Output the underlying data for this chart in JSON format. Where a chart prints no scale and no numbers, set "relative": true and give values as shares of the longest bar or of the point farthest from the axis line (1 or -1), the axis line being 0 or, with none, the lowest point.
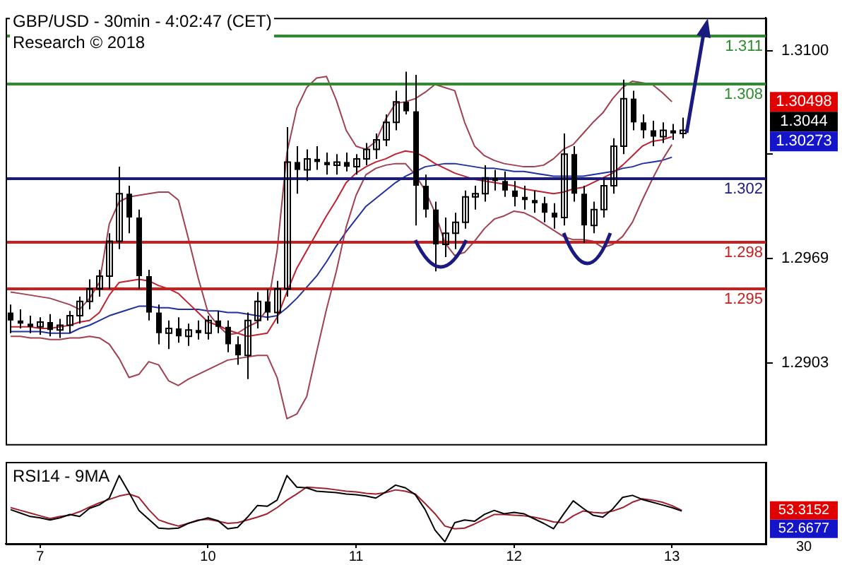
{
  "chart_data": [
    {
      "type": "candlestick",
      "title": "GBP/USD - 30min - 4:02:47 (CET)",
      "subtitle": "Research © 2018",
      "color": "#000000",
      "categories": [
        null,
        null,
        null,
        "7",
        null,
        null,
        null,
        null,
        null,
        null,
        null,
        null,
        null,
        null,
        null,
        null,
        null,
        null,
        null,
        null,
        "10",
        null,
        null,
        null,
        null,
        null,
        null,
        null,
        null,
        null,
        null,
        null,
        null,
        null,
        null,
        "11",
        null,
        null,
        null,
        null,
        null,
        null,
        null,
        null,
        null,
        null,
        null,
        null,
        null,
        null,
        null,
        "12",
        null,
        null,
        null,
        null,
        null,
        null,
        null,
        null,
        null,
        null,
        null,
        null,
        null,
        null,
        null,
        "13",
        null,
        null,
        null,
        null,
        null,
        null,
        null,
        null,
        null
      ],
      "ohlc": [
        [
          1.2935,
          1.294,
          1.2922,
          1.293
        ],
        [
          1.293,
          1.2937,
          1.2925,
          1.2928
        ],
        [
          1.2928,
          1.2933,
          1.2922,
          1.2926
        ],
        [
          1.2926,
          1.2932,
          1.2921,
          1.2929
        ],
        [
          1.2929,
          1.2934,
          1.292,
          1.2924
        ],
        [
          1.2924,
          1.2931,
          1.2919,
          1.2927
        ],
        [
          1.2927,
          1.2936,
          1.2922,
          1.2933
        ],
        [
          1.2933,
          1.2945,
          1.2928,
          1.2942
        ],
        [
          1.2942,
          1.2956,
          1.2937,
          1.295
        ],
        [
          1.295,
          1.2962,
          1.2945,
          1.2958
        ],
        [
          1.2958,
          1.2985,
          1.295,
          1.298
        ],
        [
          1.298,
          1.3027,
          1.2975,
          1.301
        ],
        [
          1.301,
          1.3015,
          1.2985,
          1.2995
        ],
        [
          1.2995,
          1.3,
          1.295,
          1.2958
        ],
        [
          1.2958,
          1.2962,
          1.293,
          1.2935
        ],
        [
          1.2935,
          1.294,
          1.2915,
          1.2922
        ],
        [
          1.2922,
          1.293,
          1.2912,
          1.2925
        ],
        [
          1.2925,
          1.2932,
          1.2916,
          1.292
        ],
        [
          1.292,
          1.2928,
          1.2914,
          1.2924
        ],
        [
          1.2924,
          1.293,
          1.2918,
          1.2922
        ],
        [
          1.2922,
          1.2933,
          1.2918,
          1.293
        ],
        [
          1.293,
          1.2936,
          1.2922,
          1.2926
        ],
        [
          1.2926,
          1.293,
          1.291,
          1.2915
        ],
        [
          1.2915,
          1.292,
          1.2902,
          1.2908
        ],
        [
          1.2908,
          1.2935,
          1.2893,
          1.293
        ],
        [
          1.293,
          1.2948,
          1.2925,
          1.2942
        ],
        [
          1.2942,
          1.295,
          1.293,
          1.2935
        ],
        [
          1.2935,
          1.2955,
          1.2928,
          1.295
        ],
        [
          1.295,
          1.3052,
          1.2945,
          1.303
        ],
        [
          1.303,
          1.304,
          1.301,
          1.3025
        ],
        [
          1.3025,
          1.3038,
          1.3018,
          1.3032
        ],
        [
          1.3032,
          1.304,
          1.3025,
          1.303
        ],
        [
          1.303,
          1.3036,
          1.3022,
          1.3028
        ],
        [
          1.3028,
          1.3035,
          1.3022,
          1.303
        ],
        [
          1.303,
          1.3036,
          1.3024,
          1.3027
        ],
        [
          1.3027,
          1.3035,
          1.3022,
          1.3032
        ],
        [
          1.3032,
          1.3042,
          1.3028,
          1.3038
        ],
        [
          1.3038,
          1.3048,
          1.3032,
          1.3044
        ],
        [
          1.3044,
          1.306,
          1.304,
          1.3055
        ],
        [
          1.3055,
          1.3075,
          1.305,
          1.3068
        ],
        [
          1.3068,
          1.3087,
          1.306,
          1.3062
        ],
        [
          1.3062,
          1.3085,
          1.299,
          1.3015
        ],
        [
          1.3015,
          1.3022,
          1.2995,
          1.3
        ],
        [
          1.3,
          1.3005,
          1.2961,
          1.2978
        ],
        [
          1.2978,
          1.2995,
          1.297,
          1.2985
        ],
        [
          1.2985,
          1.2998,
          1.2975,
          1.2992
        ],
        [
          1.2992,
          1.3012,
          1.2988,
          1.3008
        ],
        [
          1.3008,
          1.3015,
          1.3,
          1.301
        ],
        [
          1.301,
          1.3028,
          1.3005,
          1.302
        ],
        [
          1.302,
          1.3025,
          1.3012,
          1.3018
        ],
        [
          1.3018,
          1.3024,
          1.3008,
          1.3012
        ],
        [
          1.3012,
          1.3018,
          1.3002,
          1.3008
        ],
        [
          1.3008,
          1.3015,
          1.3,
          1.3006
        ],
        [
          1.3006,
          1.3012,
          1.2998,
          1.3004
        ],
        [
          1.3004,
          1.3008,
          1.2992,
          1.2998
        ],
        [
          1.2998,
          1.3004,
          1.2988,
          1.2995
        ],
        [
          1.2995,
          1.3048,
          1.299,
          1.3035
        ],
        [
          1.3035,
          1.304,
          1.3005,
          1.301
        ],
        [
          1.301,
          1.3015,
          1.2979,
          1.299
        ],
        [
          1.299,
          1.3005,
          1.2985,
          1.3
        ],
        [
          1.3,
          1.302,
          1.2995,
          1.3015
        ],
        [
          1.3015,
          1.3045,
          1.301,
          1.304
        ],
        [
          1.304,
          1.3082,
          1.3035,
          1.307
        ],
        [
          1.307,
          1.3075,
          1.305,
          1.3055
        ],
        [
          1.3055,
          1.306,
          1.3045,
          1.305
        ],
        [
          1.305,
          1.3056,
          1.304,
          1.3046
        ],
        [
          1.3046,
          1.3055,
          1.3042,
          1.305
        ],
        [
          1.305,
          1.3054,
          1.3044,
          1.3048
        ],
        [
          1.3048,
          1.3058,
          1.3045,
          1.305
        ],
        null,
        null,
        null,
        null,
        null,
        null,
        null,
        null
      ],
      "series": [
        {
          "type": "line",
          "color": "#a04050",
          "values": [
            1.2948,
            1.2947,
            1.2946,
            1.2945,
            1.2944,
            1.2942,
            1.294,
            1.2937,
            1.2944,
            1.2954,
            1.2991,
            1.3005,
            1.3008,
            1.3009,
            1.301,
            1.3011,
            1.3011,
            1.3006,
            1.2982,
            1.2957,
            1.2935,
            1.2927,
            1.2921,
            1.2922,
            1.2926,
            1.2929,
            1.2937,
            1.2974,
            1.3036,
            1.3064,
            1.3077,
            1.3083,
            1.3084,
            1.3069,
            1.305,
            1.304,
            1.3038,
            1.3043,
            1.3057,
            1.3067,
            1.3068,
            1.307,
            1.3074,
            1.3079,
            1.3077,
            1.3075,
            1.3055,
            1.304,
            1.3034,
            1.3031,
            1.3029,
            1.3028,
            1.3027,
            1.3027,
            1.3028,
            1.3032,
            1.3038,
            1.3041,
            1.3048,
            1.3055,
            1.3061,
            1.307,
            1.3077,
            1.3081,
            1.308,
            1.3079,
            1.3074,
            1.3068,
            null,
            null,
            null,
            null,
            null,
            null,
            null,
            null,
            null
          ]
        },
        {
          "type": "line",
          "color": "#c02030",
          "values": [
            1.2926,
            1.2926,
            1.2926,
            1.2925,
            1.2925,
            1.2926,
            1.2927,
            1.2929,
            1.293,
            1.2935,
            1.2946,
            1.2954,
            1.2955,
            1.2956,
            1.2955,
            1.2952,
            1.295,
            1.2947,
            1.2941,
            1.2935,
            1.2929,
            1.2927,
            1.2924,
            1.2922,
            1.292,
            1.2921,
            1.2922,
            1.2932,
            1.2948,
            1.2963,
            1.2974,
            1.2985,
            1.2996,
            1.3006,
            1.3017,
            1.3023,
            1.3027,
            1.303,
            1.3032,
            1.3035,
            1.3037,
            1.3036,
            1.3033,
            1.3029,
            1.3026,
            1.3023,
            1.3021,
            1.3019,
            1.3018,
            1.3017,
            1.3016,
            1.3015,
            1.3013,
            1.3012,
            1.3011,
            1.301,
            1.3011,
            1.3013,
            1.3014,
            1.3017,
            1.302,
            1.3023,
            1.3028,
            1.3034,
            1.304,
            1.3043,
            1.3044,
            1.3046,
            null,
            null,
            null,
            null,
            null,
            null,
            null,
            null,
            null
          ]
        },
        {
          "type": "line",
          "color": "#a04050",
          "values": [
            1.292,
            1.292,
            1.2919,
            1.2919,
            1.2918,
            1.2918,
            1.2919,
            1.2919,
            1.292,
            1.2919,
            1.2915,
            1.2906,
            1.2894,
            1.2896,
            1.2904,
            1.2902,
            1.2892,
            1.2889,
            1.2893,
            1.2896,
            1.2899,
            1.2902,
            1.2905,
            1.2906,
            1.2907,
            1.2908,
            1.2908,
            1.2894,
            1.2868,
            1.2871,
            1.2882,
            1.291,
            1.2937,
            1.2961,
            1.2989,
            1.3009,
            1.3022,
            1.3026,
            1.3028,
            1.3029,
            1.3029,
            1.3022,
            1.3012,
            1.2998,
            1.2979,
            1.2971,
            1.2973,
            1.298,
            1.2988,
            1.2994,
            1.2996,
            1.2999,
            1.2998,
            1.2995,
            1.2991,
            1.2987,
            1.2983,
            1.2981,
            1.2981,
            1.298,
            1.2976,
            1.2978,
            1.2983,
            1.2992,
            1.3006,
            1.3019,
            1.3031,
            1.3041,
            null,
            null,
            null,
            null,
            null,
            null,
            null,
            null,
            null
          ]
        },
        {
          "type": "line",
          "color": "#2030a0",
          "values": [
            1.2923,
            1.2923,
            1.2923,
            1.2923,
            1.2922,
            1.2922,
            1.2922,
            1.2925,
            1.2927,
            1.293,
            1.2933,
            1.2935,
            1.2937,
            1.2939,
            1.2939,
            1.2938,
            1.2938,
            1.2937,
            1.2937,
            1.2937,
            1.2936,
            1.2936,
            1.2935,
            1.2935,
            1.2934,
            1.2933,
            1.2932,
            1.2933,
            1.2938,
            1.2944,
            1.2951,
            1.2958,
            1.2967,
            1.2977,
            1.2986,
            1.2994,
            1.3002,
            1.3007,
            1.3012,
            1.3017,
            1.3021,
            1.3024,
            1.3027,
            1.3028,
            1.3029,
            1.3029,
            1.3028,
            1.3027,
            1.3026,
            1.3026,
            1.3025,
            1.3024,
            1.3024,
            1.3023,
            1.3022,
            1.3021,
            1.3021,
            1.3021,
            1.3021,
            1.3022,
            1.3023,
            1.3024,
            1.3026,
            1.3027,
            1.3029,
            1.303,
            1.3031,
            1.3033,
            null,
            null,
            null,
            null,
            null,
            null,
            null,
            null,
            null
          ]
        }
      ],
      "ylim": [
        1.2852,
        1.3121
      ],
      "yticks": [
        {
          "value": 1.31,
          "label": "1.3100"
        },
        {
          "value": 1.3035,
          "label": null
        },
        1.2969,
        1.2903
      ],
      "tick_labels": "y",
      "ref_lines": [
        {
          "axis": "y",
          "value": 1.311,
          "label": "1.311",
          "color": "#2e8b2e"
        },
        {
          "axis": "y",
          "value": 1.308,
          "label": "1.308",
          "color": "#2e8b2e"
        },
        {
          "axis": "y",
          "value": 1.302,
          "label": "1.302",
          "color": "#1a1a80"
        },
        {
          "axis": "y",
          "value": 1.298,
          "label": "1.298",
          "color": "#c81e1e"
        },
        {
          "axis": "y",
          "value": 1.295,
          "label": "1.295",
          "color": "#c81e1e"
        }
      ],
      "annotations": [
        "1.30498",
        "1.3044",
        "1.30273"
      ]
    },
    {
      "type": "line",
      "title": "RSI14 - 9MA",
      "relative": true,
      "categories": [
        null,
        null,
        null,
        "7",
        null,
        null,
        null,
        null,
        null,
        null,
        null,
        null,
        null,
        null,
        null,
        null,
        null,
        null,
        null,
        null,
        "10",
        null,
        null,
        null,
        null,
        null,
        null,
        null,
        null,
        null,
        null,
        null,
        null,
        null,
        null,
        "11",
        null,
        null,
        null,
        null,
        null,
        null,
        null,
        null,
        null,
        null,
        null,
        null,
        null,
        null,
        null,
        "12",
        null,
        null,
        null,
        null,
        null,
        null,
        null,
        null,
        null,
        null,
        null,
        null,
        null,
        null,
        null,
        "13",
        null,
        null,
        null,
        null,
        null,
        null,
        null,
        null,
        null
      ],
      "series": [
        {
          "color": "#000000",
          "values": [
            0.5,
            0.45,
            0.4,
            0.38,
            0.35,
            0.38,
            0.43,
            0.4,
            0.52,
            0.57,
            0.67,
            1.0,
            0.75,
            0.49,
            0.36,
            0.23,
            0.22,
            0.23,
            0.3,
            0.34,
            0.38,
            0.34,
            0.22,
            0.24,
            0.39,
            0.56,
            0.55,
            0.64,
            1.0,
            0.83,
            0.82,
            0.77,
            0.76,
            0.75,
            0.73,
            0.72,
            0.7,
            0.67,
            0.76,
            0.86,
            0.82,
            0.72,
            0.5,
            0.2,
            0.03,
            0.31,
            0.35,
            0.33,
            0.43,
            0.49,
            0.44,
            0.46,
            0.44,
            0.37,
            0.3,
            0.22,
            0.43,
            0.63,
            0.52,
            0.42,
            0.39,
            0.51,
            0.68,
            0.71,
            0.65,
            0.61,
            0.57,
            0.53,
            0.48,
            null,
            null,
            null,
            null,
            null,
            null,
            null,
            null
          ]
        },
        {
          "color": "#a02030",
          "values": [
            0.53,
            0.49,
            0.45,
            0.41,
            0.37,
            0.4,
            0.42,
            0.47,
            0.54,
            0.6,
            0.65,
            0.7,
            0.73,
            0.68,
            0.5,
            0.35,
            0.3,
            0.26,
            0.3,
            0.35,
            0.36,
            0.33,
            0.3,
            0.31,
            0.35,
            0.39,
            0.44,
            0.53,
            0.64,
            0.73,
            0.83,
            0.82,
            0.81,
            0.79,
            0.77,
            0.76,
            0.74,
            0.73,
            0.75,
            0.79,
            0.77,
            0.73,
            0.59,
            0.44,
            0.26,
            0.22,
            0.23,
            0.29,
            0.36,
            0.43,
            0.43,
            0.42,
            0.41,
            0.39,
            0.36,
            0.32,
            0.31,
            0.41,
            0.48,
            0.46,
            0.45,
            0.48,
            0.53,
            0.61,
            0.66,
            0.64,
            0.61,
            0.56,
            0.49,
            null,
            null,
            null,
            null,
            null,
            null,
            null,
            null
          ]
        }
      ],
      "annotations": [
        "53.3152",
        "52.6677",
        "30"
      ]
    }
  ]
}
